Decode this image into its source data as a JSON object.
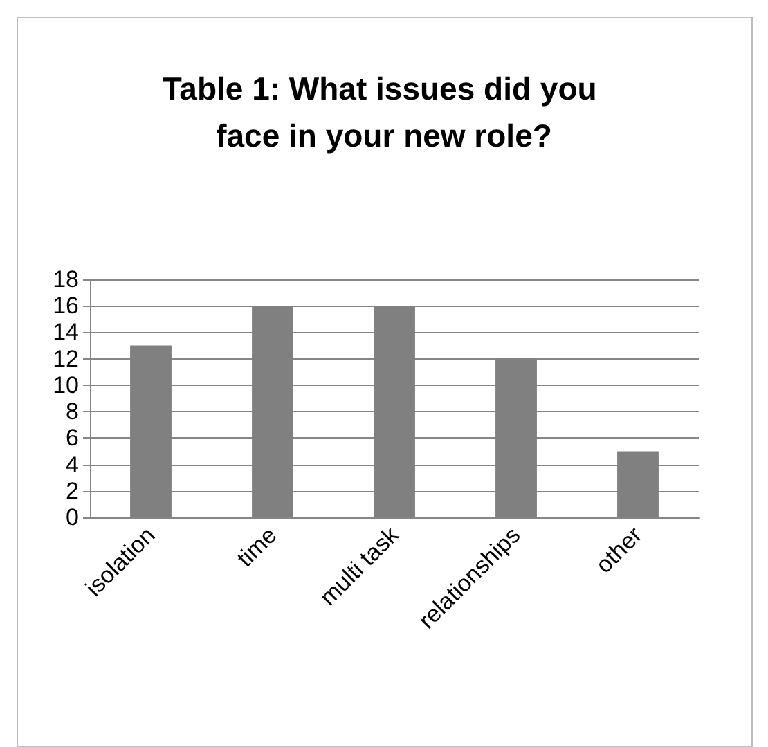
{
  "chart_data": {
    "type": "bar",
    "title": "Table 1: What issues did you face in your new role?",
    "categories": [
      "isolation",
      "time",
      "multi task",
      "relationships",
      "other"
    ],
    "values": [
      13,
      16,
      16,
      12,
      5
    ],
    "color": "#808080",
    "ylim": [
      0,
      18
    ],
    "yticks": [
      0,
      2,
      4,
      6,
      8,
      10,
      12,
      14,
      16,
      18
    ],
    "grid": "y"
  }
}
